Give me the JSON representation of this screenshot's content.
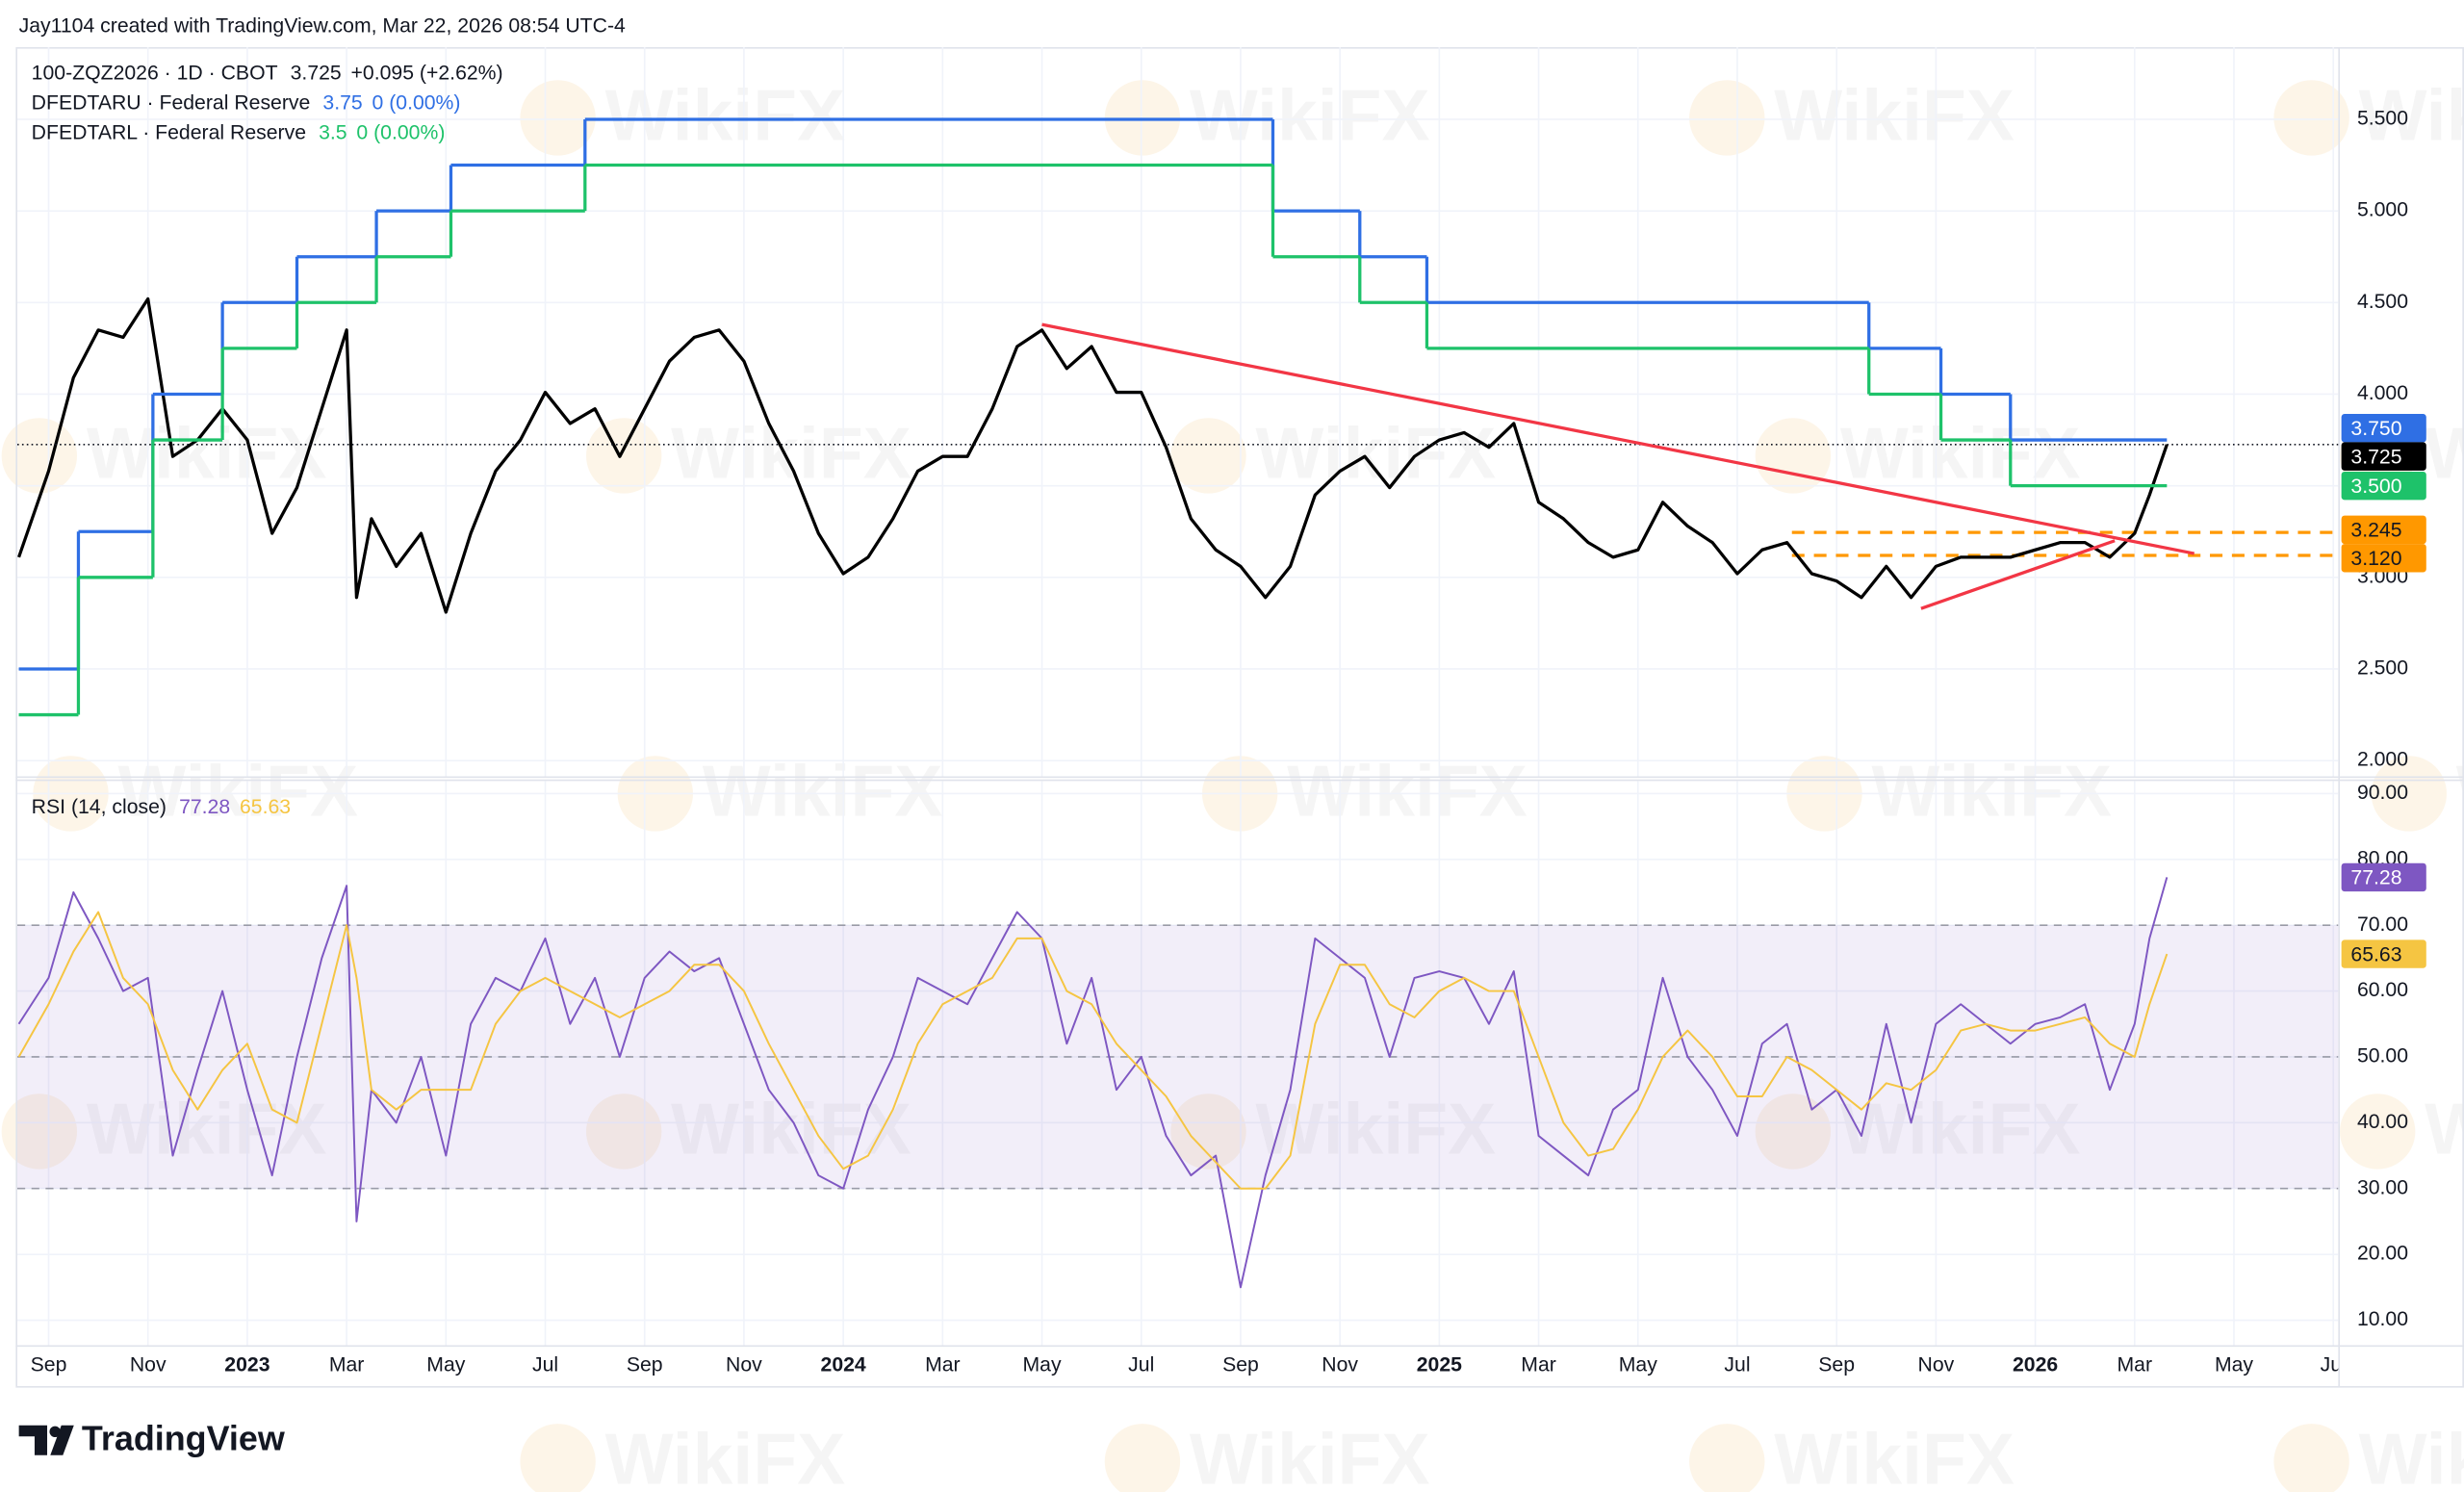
{
  "header": {
    "credit": "Jay1104 created with TradingView.com, Mar 22, 2026 08:54 UTC-4"
  },
  "watermark": "WikiFX",
  "footer": {
    "logo": "TradingView"
  },
  "chart_data": [
    {
      "type": "line",
      "grid": true,
      "ylim": [
        1.914,
        5.894
      ],
      "yticks": [
        {
          "value": 2,
          "label": "2.000"
        },
        {
          "value": 2.5,
          "label": "2.500"
        },
        {
          "value": 3,
          "label": "3.000"
        },
        {
          "value": 3.5,
          "label": "3.500"
        },
        {
          "value": 4,
          "label": "4.000"
        },
        {
          "value": 4.5,
          "label": "4.500"
        },
        {
          "value": 5,
          "label": "5.000"
        },
        {
          "value": 5.5,
          "label": "5.500"
        }
      ],
      "x": [
        -0.6,
        0,
        0.5,
        1,
        1.5,
        2,
        2.5,
        3,
        3.5,
        4,
        4.5,
        5,
        5.5,
        6,
        6.2,
        6.5,
        7,
        7.5,
        8,
        8.5,
        9,
        9.5,
        10,
        10.5,
        11,
        11.5,
        12,
        12.5,
        13,
        13.5,
        14,
        14.5,
        15,
        15.5,
        16,
        16.5,
        17,
        17.5,
        18,
        18.5,
        19,
        19.5,
        20,
        20.5,
        21,
        21.5,
        22,
        22.5,
        23,
        23.5,
        24,
        24.5,
        25,
        25.5,
        26,
        26.5,
        27,
        27.5,
        28,
        28.5,
        29,
        29.5,
        30,
        30.5,
        31,
        31.5,
        32,
        32.5,
        33,
        33.5,
        34,
        34.5,
        35,
        35.5,
        36,
        36.5,
        37,
        37.5,
        38,
        38.5,
        39,
        39.5,
        40,
        40.5,
        41,
        41.5,
        42,
        42.3,
        42.65
      ],
      "series": [
        {
          "name": "100-ZQZ2026 · 1D · CBOT",
          "color": "#000000",
          "price_line": true,
          "legend_values": [
            "3.725",
            "+0.095 (+2.62%)"
          ],
          "last_label": "3.725",
          "values": [
            3.11,
            3.58,
            4.09,
            4.35,
            4.31,
            4.52,
            3.66,
            3.75,
            3.92,
            3.75,
            3.24,
            3.49,
            3.92,
            4.35,
            2.89,
            3.32,
            3.06,
            3.24,
            2.81,
            3.24,
            3.58,
            3.75,
            4.01,
            3.84,
            3.92,
            3.66,
            3.92,
            4.18,
            4.31,
            4.35,
            4.18,
            3.84,
            3.58,
            3.24,
            3.02,
            3.11,
            3.32,
            3.58,
            3.66,
            3.66,
            3.92,
            4.26,
            4.35,
            4.14,
            4.26,
            4.01,
            4.01,
            3.71,
            3.32,
            3.15,
            3.06,
            2.89,
            3.06,
            3.45,
            3.58,
            3.66,
            3.49,
            3.66,
            3.75,
            3.79,
            3.71,
            3.84,
            3.41,
            3.32,
            3.19,
            3.11,
            3.15,
            3.41,
            3.28,
            3.19,
            3.02,
            3.15,
            3.19,
            3.02,
            2.98,
            2.89,
            3.06,
            2.89,
            3.06,
            3.11,
            3.11,
            3.11,
            3.15,
            3.19,
            3.19,
            3.11,
            3.24,
            3.45,
            3.725
          ]
        },
        {
          "name": "DFEDTARU · Federal Reserve",
          "color": "#2f6fe4",
          "step": true,
          "legend_values": [
            "3.75",
            "0 (0.00%)"
          ],
          "last_label": "3.750",
          "x": [
            -0.6,
            0.6,
            2.1,
            3.5,
            5.0,
            6.6,
            8.1,
            10.8,
            24.65,
            26.4,
            27.75,
            36.65,
            38.1,
            39.5,
            42.65
          ],
          "values": [
            2.5,
            3.25,
            4.0,
            4.5,
            4.75,
            5.0,
            5.25,
            5.5,
            5.0,
            4.75,
            4.5,
            4.25,
            4.0,
            3.75,
            3.75
          ]
        },
        {
          "name": "DFEDTARL · Federal Reserve",
          "color": "#1ec26a",
          "step": true,
          "legend_values": [
            "3.5",
            "0 (0.00%)"
          ],
          "last_label": "3.500",
          "x": [
            -0.6,
            0.6,
            2.1,
            3.5,
            5.0,
            6.6,
            8.1,
            10.8,
            24.65,
            26.4,
            27.75,
            36.65,
            38.1,
            39.5,
            42.65
          ],
          "values": [
            2.25,
            3.0,
            3.75,
            4.25,
            4.5,
            4.75,
            5.0,
            5.25,
            4.75,
            4.5,
            4.25,
            4.0,
            3.75,
            3.5,
            3.5
          ]
        }
      ],
      "levels": [
        {
          "value": 3.245,
          "label": "3.245",
          "x_start": 35.1,
          "color": "#ff9800"
        },
        {
          "value": 3.12,
          "label": "3.120",
          "x_start": 35.1,
          "color": "#ff9800"
        }
      ],
      "trendlines": [
        {
          "x": [
            20,
            43.2
          ],
          "values": [
            4.38,
            3.13
          ],
          "color": "#f23645"
        },
        {
          "x": [
            37.7,
            41.6
          ],
          "values": [
            2.83,
            3.2
          ],
          "color": "#f23645"
        }
      ]
    },
    {
      "type": "line",
      "grid": true,
      "ylim": [
        6.2,
        91.9
      ],
      "yticks": [
        {
          "value": 10,
          "label": "10.00"
        },
        {
          "value": 20,
          "label": "20.00"
        },
        {
          "value": 30,
          "label": "30.00"
        },
        {
          "value": 40,
          "label": "40.00"
        },
        {
          "value": 50,
          "label": "50.00"
        },
        {
          "value": 60,
          "label": "60.00"
        },
        {
          "value": 70,
          "label": "70.00"
        },
        {
          "value": 80,
          "label": "80.00"
        },
        {
          "value": 90,
          "label": "90.00"
        }
      ],
      "band": [
        30,
        70
      ],
      "band_color": "#7e57c2",
      "dashed_levels": [
        30,
        50,
        70
      ],
      "xlim": [
        -0.63,
        46.1
      ],
      "xticks": [
        {
          "value": 0,
          "label": "Sep"
        },
        {
          "value": 2,
          "label": "Nov"
        },
        {
          "value": 4,
          "label": "2023"
        },
        {
          "value": 6,
          "label": "Mar"
        },
        {
          "value": 8,
          "label": "May"
        },
        {
          "value": 10,
          "label": "Jul"
        },
        {
          "value": 12,
          "label": "Sep"
        },
        {
          "value": 14,
          "label": "Nov"
        },
        {
          "value": 16,
          "label": "2024"
        },
        {
          "value": 18,
          "label": "Mar"
        },
        {
          "value": 20,
          "label": "May"
        },
        {
          "value": 22,
          "label": "Jul"
        },
        {
          "value": 24,
          "label": "Sep"
        },
        {
          "value": 26,
          "label": "Nov"
        },
        {
          "value": 28,
          "label": "2025"
        },
        {
          "value": 30,
          "label": "Mar"
        },
        {
          "value": 32,
          "label": "May"
        },
        {
          "value": 34,
          "label": "Jul"
        },
        {
          "value": 36,
          "label": "Sep"
        },
        {
          "value": 38,
          "label": "Nov"
        },
        {
          "value": 40,
          "label": "2026"
        },
        {
          "value": 42,
          "label": "Mar"
        },
        {
          "value": 44,
          "label": "May"
        },
        {
          "value": 46,
          "label": "Jul"
        }
      ],
      "x": [
        -0.6,
        0,
        0.5,
        1,
        1.5,
        2,
        2.5,
        3,
        3.5,
        4,
        4.5,
        5,
        5.5,
        6,
        6.2,
        6.5,
        7,
        7.5,
        8,
        8.5,
        9,
        9.5,
        10,
        10.5,
        11,
        11.5,
        12,
        12.5,
        13,
        13.5,
        14,
        14.5,
        15,
        15.5,
        16,
        16.5,
        17,
        17.5,
        18,
        18.5,
        19,
        19.5,
        20,
        20.5,
        21,
        21.5,
        22,
        22.5,
        23,
        23.5,
        24,
        24.5,
        25,
        25.5,
        26,
        26.5,
        27,
        27.5,
        28,
        28.5,
        29,
        29.5,
        30,
        30.5,
        31,
        31.5,
        32,
        32.5,
        33,
        33.5,
        34,
        34.5,
        35,
        35.5,
        36,
        36.5,
        37,
        37.5,
        38,
        38.5,
        39,
        39.5,
        40,
        40.5,
        41,
        41.5,
        42,
        42.3,
        42.65
      ],
      "series": [
        {
          "name": "RSI (14, close)",
          "color": "#7e57c2",
          "legend_values": [
            "77.28"
          ],
          "last_label": "77.28",
          "values": [
            55,
            62,
            75,
            68,
            60,
            62,
            35,
            48,
            60,
            45,
            32,
            50,
            65,
            76,
            25,
            45,
            40,
            50,
            35,
            55,
            62,
            60,
            68,
            55,
            62,
            50,
            62,
            66,
            63,
            65,
            55,
            45,
            40,
            32,
            30,
            42,
            50,
            62,
            60,
            58,
            65,
            72,
            68,
            52,
            62,
            45,
            50,
            38,
            32,
            35,
            15,
            32,
            45,
            68,
            65,
            62,
            50,
            62,
            63,
            62,
            55,
            63,
            38,
            35,
            32,
            42,
            45,
            62,
            50,
            45,
            38,
            52,
            55,
            42,
            45,
            38,
            55,
            40,
            55,
            58,
            55,
            52,
            55,
            56,
            58,
            45,
            55,
            68,
            77.28
          ]
        },
        {
          "color": "#f5c542",
          "legend_values": [
            "65.63"
          ],
          "last_label": "65.63",
          "values": [
            50,
            58,
            66,
            72,
            62,
            58,
            48,
            42,
            48,
            52,
            42,
            40,
            55,
            70,
            62,
            45,
            42,
            45,
            45,
            45,
            55,
            60,
            62,
            60,
            58,
            56,
            58,
            60,
            64,
            64,
            60,
            52,
            45,
            38,
            33,
            35,
            42,
            52,
            58,
            60,
            62,
            68,
            68,
            60,
            58,
            52,
            48,
            44,
            38,
            34,
            30,
            30,
            35,
            55,
            64,
            64,
            58,
            56,
            60,
            62,
            60,
            60,
            50,
            40,
            35,
            36,
            42,
            50,
            54,
            50,
            44,
            44,
            50,
            48,
            45,
            42,
            46,
            45,
            48,
            54,
            55,
            54,
            54,
            55,
            56,
            52,
            50,
            58,
            65.63
          ]
        }
      ]
    }
  ]
}
